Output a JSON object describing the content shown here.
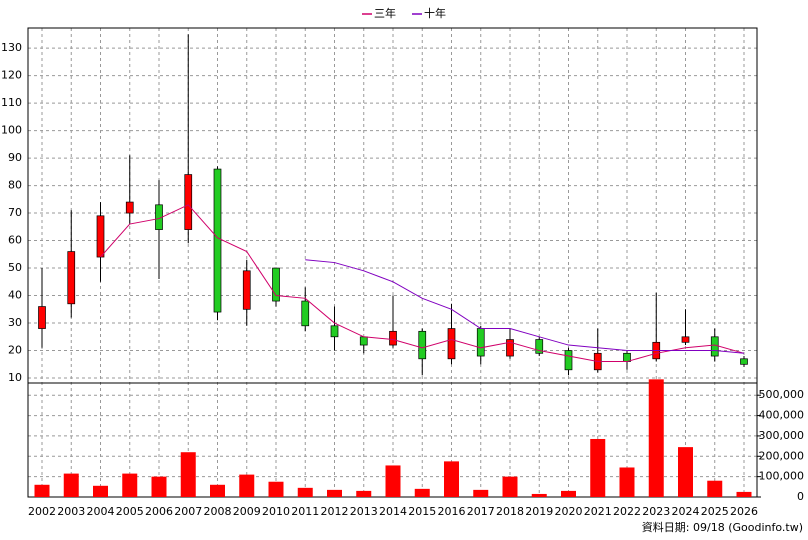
{
  "chart_data": {
    "type": "candlestick",
    "categories": [
      "2002",
      "2003",
      "2004",
      "2005",
      "2006",
      "2007",
      "2008",
      "2009",
      "2010",
      "2011",
      "2012",
      "2013",
      "2014",
      "2015",
      "2016",
      "2017",
      "2018",
      "2019",
      "2020",
      "2021",
      "2022",
      "2023",
      "2024",
      "2025",
      "2026"
    ],
    "open": [
      28,
      37,
      54,
      70,
      73,
      64,
      86,
      35,
      50,
      38,
      29,
      25,
      22,
      27,
      17,
      28,
      18,
      24,
      20,
      13,
      19,
      17,
      23,
      25,
      17
    ],
    "high": [
      50,
      71,
      74,
      91,
      82,
      135,
      87,
      53,
      50,
      43,
      36,
      25,
      40,
      28,
      37,
      29,
      28,
      25,
      21,
      28,
      20,
      41,
      35,
      28,
      18
    ],
    "low": [
      21,
      32,
      45,
      66,
      46,
      59,
      31,
      29,
      36,
      27,
      20,
      19,
      21,
      11,
      15,
      15,
      17,
      18,
      11,
      12,
      13,
      16,
      22,
      16,
      14
    ],
    "close": [
      36,
      56,
      69,
      74,
      64,
      84,
      34,
      49,
      38,
      29,
      25,
      22,
      27,
      17,
      28,
      18,
      24,
      19,
      13,
      19,
      16,
      23,
      25,
      18,
      15
    ],
    "up_color": "#ff0000",
    "down_color": "#22cc22",
    "series": [
      {
        "name": "三年",
        "color": "#d0006a",
        "values": [
          null,
          null,
          54,
          66,
          68,
          73,
          61,
          56,
          40,
          39,
          30,
          25,
          24,
          21,
          24,
          21,
          23,
          20,
          18,
          16,
          16,
          19,
          21,
          22,
          19
        ]
      },
      {
        "name": "十年",
        "color": "#8000c0",
        "values": [
          null,
          null,
          null,
          null,
          null,
          null,
          null,
          null,
          null,
          53,
          52,
          49,
          45,
          39,
          35,
          28,
          28,
          25,
          22,
          21,
          20,
          20,
          20,
          20,
          19
        ]
      }
    ],
    "ylim": [
      8.2,
      137.3
    ],
    "yticks": [
      10,
      20,
      30,
      40,
      50,
      60,
      70,
      80,
      90,
      100,
      110,
      120,
      130
    ],
    "volume": {
      "color": "#ff0000",
      "values": [
        60000,
        115000,
        55000,
        115000,
        100000,
        220000,
        60000,
        110000,
        75000,
        45000,
        35000,
        30000,
        155000,
        40000,
        175000,
        35000,
        100000,
        15000,
        30000,
        285000,
        145000,
        578000,
        245000,
        80000,
        25000
      ],
      "ylim": [
        0,
        560000
      ],
      "yticks": [
        0,
        {
          "value": 100000,
          "label": "100,000"
        },
        {
          "value": 200000,
          "label": "200,000"
        },
        {
          "value": 300000,
          "label": "300,000"
        },
        {
          "value": 400000,
          "label": "400,000"
        },
        {
          "value": 500000,
          "label": "500,000"
        }
      ]
    },
    "grid": true,
    "footer": "資料日期: 09/18 (Goodinfo.tw)"
  }
}
